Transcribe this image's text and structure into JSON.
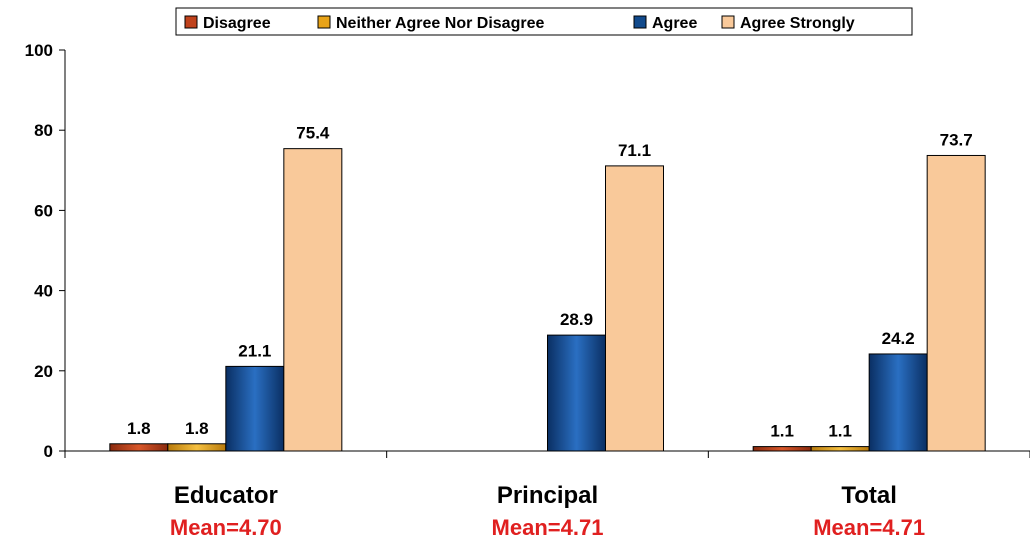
{
  "chart_data": {
    "type": "bar",
    "categories": [
      "Educator",
      "Principal",
      "Total"
    ],
    "means": [
      "Mean=4.70",
      "Mean=4.71",
      "Mean=4.71"
    ],
    "series": [
      {
        "name": "Disagree",
        "color": "#c0421c",
        "values": [
          1.8,
          0,
          1.1
        ],
        "labels": [
          "1.8",
          "",
          "1.1"
        ]
      },
      {
        "name": "Neither Agree Nor Disagree",
        "color": "#e8a317",
        "values": [
          1.8,
          0,
          1.1
        ],
        "labels": [
          "1.8",
          "",
          "1.1"
        ]
      },
      {
        "name": "Agree",
        "color": "#124a8c",
        "values": [
          21.1,
          28.9,
          24.2
        ],
        "labels": [
          "21.1",
          "28.9",
          "24.2"
        ]
      },
      {
        "name": "Agree Strongly",
        "color": "#f9c99a",
        "values": [
          75.4,
          71.1,
          73.7
        ],
        "labels": [
          "75.4",
          "71.1",
          "73.7"
        ]
      }
    ],
    "ylim": [
      0,
      100
    ],
    "yticks": [
      "0",
      "20",
      "40",
      "60",
      "80",
      "100"
    ],
    "legend_position": "top"
  }
}
